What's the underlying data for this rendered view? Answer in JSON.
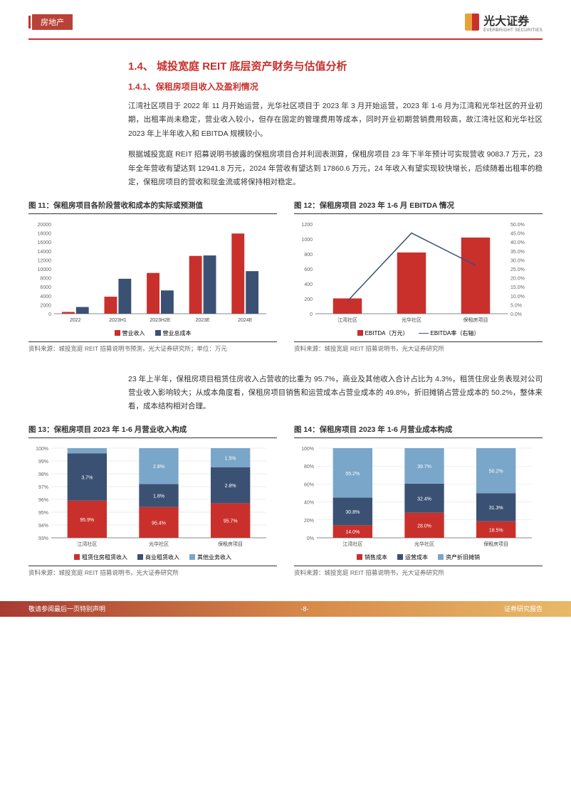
{
  "header": {
    "sector": "房地产",
    "company": "光大证券",
    "company_en": "EVERBRIGHT SECURITIES"
  },
  "sections": {
    "h1": "1.4、 城投宽庭 REIT 底层资产财务与估值分析",
    "h2": "1.4.1、保租房项目收入及盈利情况",
    "p1": "江湾社区项目于 2022 年 11 月开始运营，光华社区项目于 2023 年 3 月开始运营，2023 年 1-6 月为江湾和光华社区的开业初期，出租率尚未稳定，营业收入较小，但存在固定的管理费用等成本，同时开业初期营销费用较高，故江湾社区和光华社区 2023 年上半年收入和 EBITDA 规模较小。",
    "p2": "根据城投宽庭 REIT 招募说明书披露的保租房项目合并利润表测算，保租房项目 23 年下半年预计可实现营收 9083.7 万元，23 年全年营收有望达到 12941.8 万元，2024 年营收有望达到 17860.6 万元，24 年收入有望实现较快增长，后续随着出租率的稳定，保租房项目的营收和现金流或将保持相对稳定。",
    "p3": "23 年上半年，保租房项目租赁住房收入占营收的比重为 95.7%，商业及其他收入合计占比为 4.3%，租赁住房业务表现对公司营业收入影响较大；从成本角度看，保租房项目销售和运营成本占营业成本的 49.8%，折旧摊销占营业成本的 50.2%，整体来看，成本结构相对合理。"
  },
  "fig11": {
    "title": "图 11：保租房项目各阶段营收和成本的实际或预测值",
    "source": "资料来源：城投宽庭 REIT 招募说明书预测，光大证券研究所；单位：万元",
    "type": "bar",
    "categories": [
      "2022",
      "2023H1",
      "2023H2E",
      "2023E",
      "2024E"
    ],
    "series1_name": "营业收入",
    "series2_name": "营业总成本",
    "s1": [
      400,
      3800,
      9100,
      12900,
      17900
    ],
    "s2": [
      1500,
      7800,
      5200,
      13000,
      9500
    ],
    "s1_color": "#c9302c",
    "s2_color": "#3b5173",
    "ylim": [
      0,
      20000
    ],
    "ytick_step": 2000,
    "label_fontsize": 7,
    "bar_width": 0.35
  },
  "fig12": {
    "title": "图 12：保租房项目 2023 年 1-6 月 EBITDA 情况",
    "source": "资料来源：城投宽庭 REIT 招募说明书，光大证券研究所",
    "type": "bar+line",
    "categories": [
      "江湾社区",
      "光华社区",
      "保租房项目"
    ],
    "bar_name": "EBITDA（万元）",
    "line_name": "EBITDA率（右轴）",
    "bar": [
      205,
      820,
      1020
    ],
    "line": [
      7,
      45,
      27
    ],
    "bar_color": "#c9302c",
    "line_color": "#3b5173",
    "ylim_left": [
      0,
      1200
    ],
    "ytick_left": 200,
    "ylim_right": [
      0,
      50
    ],
    "ytick_right": 5,
    "right_fmt": "%.1f%%"
  },
  "fig13": {
    "title": "图 13：保租房项目 2023 年 1-6 月营业收入构成",
    "source": "资料来源：城投宽庭 REIT 招募说明书，光大证券研究所",
    "type": "stacked",
    "categories": [
      "江湾社区",
      "光华社区",
      "保租房项目"
    ],
    "seg_names": [
      "租赁住房租赁收入",
      "商业租赁收入",
      "其他业务收入"
    ],
    "colors": [
      "#c9302c",
      "#3b5173",
      "#7aa6c9"
    ],
    "data": [
      [
        95.9,
        3.7,
        0.4
      ],
      [
        95.4,
        1.8,
        2.8
      ],
      [
        95.7,
        2.8,
        1.5
      ]
    ],
    "ylim": [
      93,
      100
    ],
    "ytick_step": 1,
    "yfmt": "%d%%"
  },
  "fig14": {
    "title": "图 14：保租房项目 2023 年 1-6 月营业成本构成",
    "source": "资料来源：城投宽庭 REIT 招募说明书，光大证券研究所",
    "type": "stacked",
    "categories": [
      "江湾社区",
      "光华社区",
      "保租房项目"
    ],
    "seg_names": [
      "销售成本",
      "运营成本",
      "资产折旧摊销"
    ],
    "colors": [
      "#c9302c",
      "#3b5173",
      "#7aa6c9"
    ],
    "data": [
      [
        14.0,
        30.8,
        55.2
      ],
      [
        28.0,
        32.4,
        39.7
      ],
      [
        18.5,
        31.3,
        50.2
      ]
    ],
    "ylim": [
      0,
      100
    ],
    "ytick_step": 20,
    "yfmt": "%d%%"
  },
  "footer": {
    "left": "敬请参阅最后一页特别声明",
    "center": "-8-",
    "right": "证券研究报告"
  }
}
